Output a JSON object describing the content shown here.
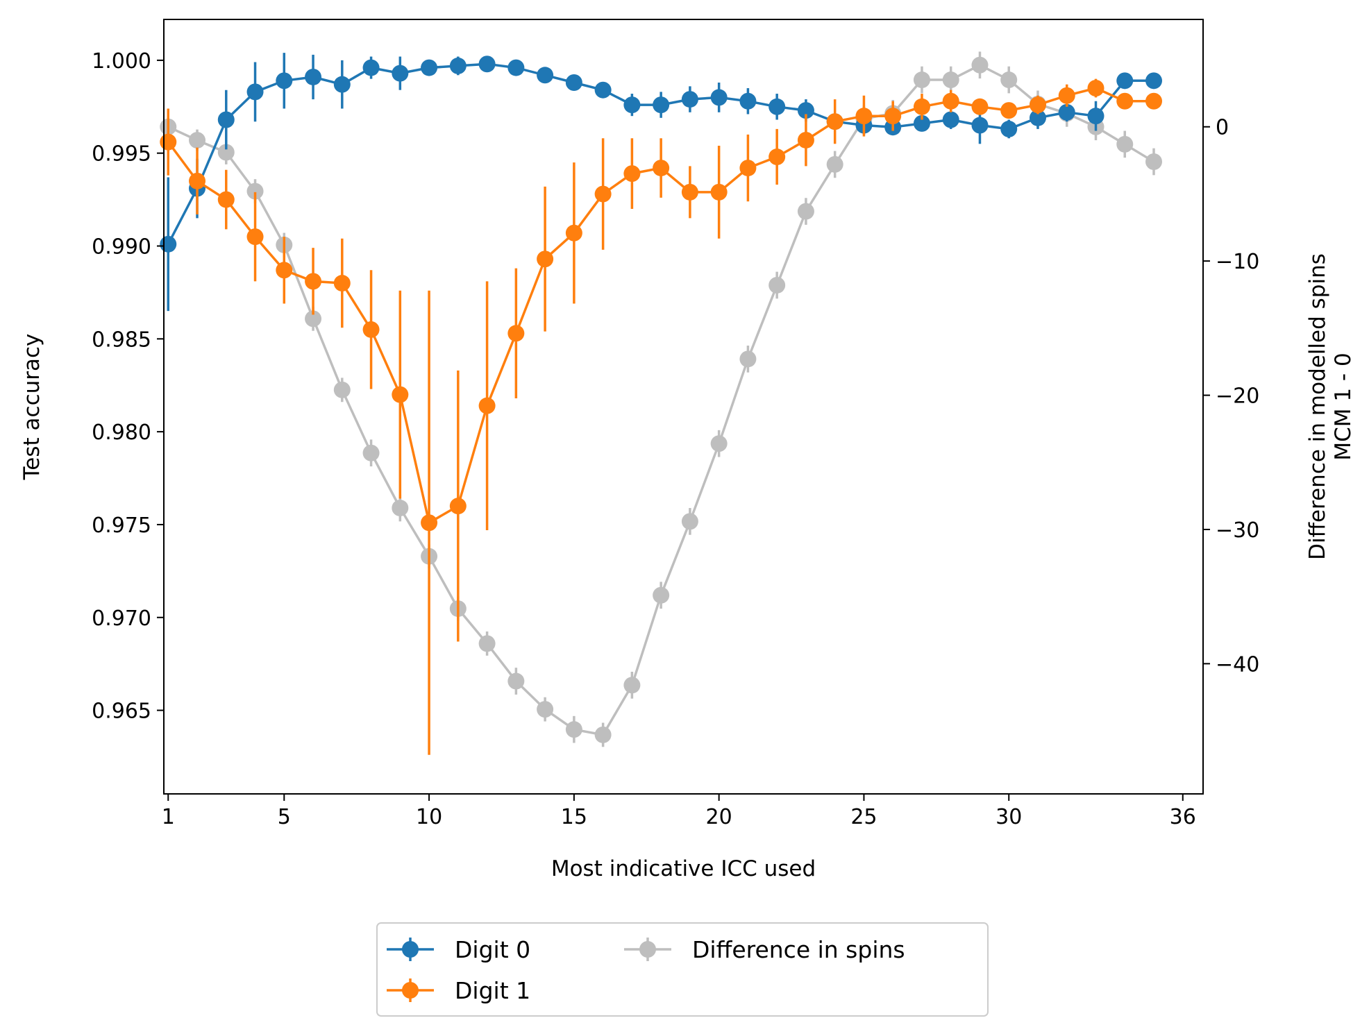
{
  "chart_data": {
    "type": "line",
    "xlabel": "Most indicative ICC used",
    "ylabel": "Test accuracy",
    "y2label": [
      "Difference in modelled spins",
      "MCM 1 - 0"
    ],
    "xlim": [
      0.85,
      36.7
    ],
    "ylim": [
      0.9605,
      1.0022
    ],
    "y2lim": [
      -49.7,
      8.0
    ],
    "x_ticks": [
      1,
      5,
      10,
      15,
      20,
      25,
      30,
      36
    ],
    "y_ticks": [
      0.965,
      0.97,
      0.975,
      0.98,
      0.985,
      0.99,
      0.995,
      1.0
    ],
    "y_tick_labels": [
      "0.965",
      "0.970",
      "0.975",
      "0.980",
      "0.985",
      "0.990",
      "0.995",
      "1.000"
    ],
    "y2_ticks": [
      0,
      -10,
      -20,
      -30,
      -40
    ],
    "y2_tick_labels": [
      "0",
      "−10",
      "−20",
      "−30",
      "−40"
    ],
    "x": [
      1,
      2,
      3,
      4,
      5,
      6,
      7,
      8,
      9,
      10,
      11,
      12,
      13,
      14,
      15,
      16,
      17,
      18,
      19,
      20,
      21,
      22,
      23,
      24,
      25,
      26,
      27,
      28,
      29,
      30,
      31,
      32,
      33,
      34,
      35
    ],
    "series": [
      {
        "name": "Digit 0",
        "axis": "left",
        "color": "#1f77b4",
        "values": [
          0.9901,
          0.9931,
          0.9968,
          0.9983,
          0.9989,
          0.9991,
          0.9987,
          0.9996,
          0.9993,
          0.9996,
          0.9997,
          0.9998,
          0.9996,
          0.9992,
          0.9988,
          0.9984,
          0.9976,
          0.9976,
          0.9979,
          0.998,
          0.9978,
          0.9975,
          0.9973,
          0.9967,
          0.9965,
          0.9964,
          0.9966,
          0.9968,
          0.9965,
          0.9963,
          0.9969,
          0.9972,
          0.997,
          0.9989,
          0.9989
        ],
        "errors": [
          0.0036,
          0.0016,
          0.0016,
          0.0016,
          0.0015,
          0.0012,
          0.0013,
          0.0006,
          0.0009,
          0.0004,
          0.0005,
          0.0003,
          0.0003,
          0.0004,
          0.0003,
          0.0004,
          0.0006,
          0.0007,
          0.0007,
          0.0008,
          0.0007,
          0.0007,
          0.0006,
          0.0004,
          0.0005,
          0.0004,
          0.0004,
          0.0005,
          0.001,
          0.0005,
          0.0006,
          0.0005,
          0.0008,
          0.0002,
          0.0002
        ]
      },
      {
        "name": "Digit 1",
        "axis": "left",
        "color": "#ff7f0e",
        "values": [
          0.9956,
          0.9935,
          0.9925,
          0.9905,
          0.9887,
          0.9881,
          0.988,
          0.9855,
          0.982,
          0.9751,
          0.976,
          0.9814,
          0.9853,
          0.9893,
          0.9907,
          0.9928,
          0.9939,
          0.9942,
          0.9929,
          0.9929,
          0.9942,
          0.9948,
          0.9957,
          0.9967,
          0.997,
          0.997,
          0.9975,
          0.9978,
          0.9975,
          0.9973,
          0.9976,
          0.9981,
          0.9985,
          0.9978,
          0.9978
        ],
        "errors": [
          0.0018,
          0.0018,
          0.0016,
          0.0024,
          0.0018,
          0.0018,
          0.0024,
          0.0032,
          0.0056,
          0.0125,
          0.0073,
          0.0067,
          0.0035,
          0.0039,
          0.0038,
          0.003,
          0.0019,
          0.0016,
          0.0014,
          0.0025,
          0.0018,
          0.0015,
          0.0014,
          0.0012,
          0.0011,
          0.0008,
          0.0007,
          0.0006,
          0.0004,
          0.0004,
          0.0005,
          0.0006,
          0.0005,
          0.0003,
          0.0003
        ]
      },
      {
        "name": "Difference in spins",
        "axis": "right",
        "color": "#7f7f7f",
        "values": [
          0.0,
          -1.0,
          -1.9,
          -4.8,
          -8.8,
          -14.3,
          -19.6,
          -24.3,
          -28.4,
          -32.0,
          -35.9,
          -38.5,
          -41.3,
          -43.4,
          -44.9,
          -45.3,
          -41.6,
          -34.9,
          -29.4,
          -23.6,
          -17.3,
          -11.8,
          -6.3,
          -2.8,
          0.6,
          1.0,
          3.5,
          3.5,
          4.6,
          3.5,
          1.7,
          1.0,
          0.0,
          -1.3,
          -2.6
        ],
        "errors": [
          0.9,
          0.8,
          0.9,
          0.9,
          0.9,
          0.9,
          0.9,
          1.0,
          1.0,
          0.9,
          0.9,
          0.9,
          1.0,
          0.9,
          1.0,
          0.9,
          1.0,
          1.0,
          1.0,
          1.0,
          1.0,
          1.0,
          1.0,
          1.0,
          1.0,
          1.0,
          1.0,
          1.0,
          1.0,
          1.0,
          1.0,
          1.0,
          1.0,
          1.0,
          1.0
        ]
      }
    ],
    "legend": {
      "placement": "bottom-center",
      "columns": 2,
      "entries": [
        "Digit 0",
        "Digit 1",
        "Difference in spins"
      ]
    },
    "grid": false
  }
}
